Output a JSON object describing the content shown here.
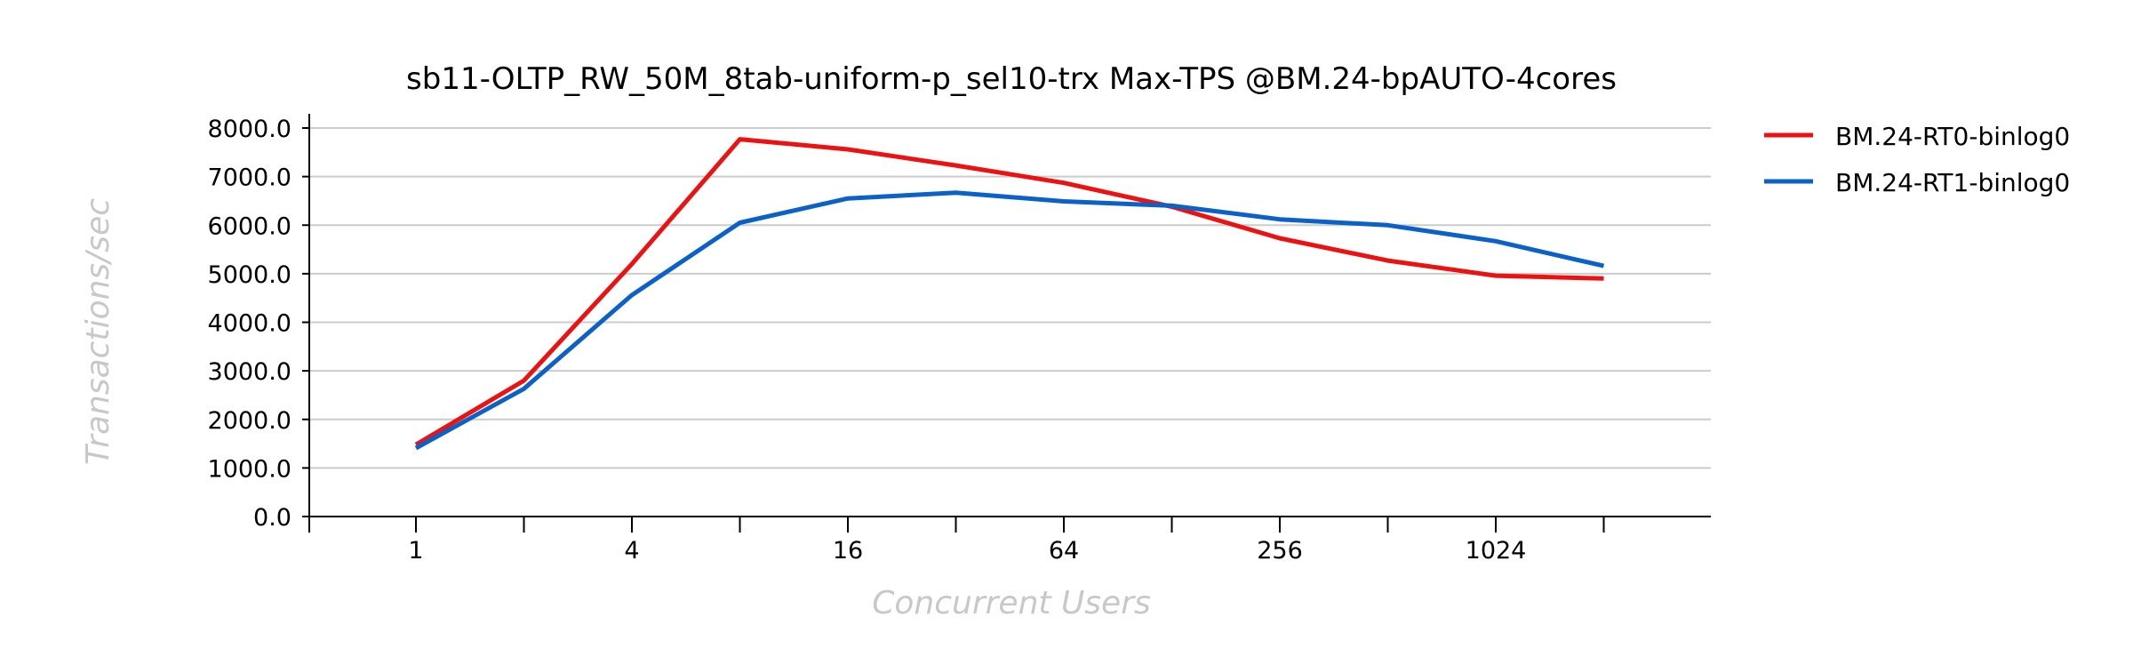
{
  "chart_data": {
    "type": "line",
    "title": "sb11-OLTP_RW_50M_8tab-uniform-p_sel10-trx Max-TPS @BM.24-bpAUTO-4cores",
    "xlabel": "Concurrent Users",
    "ylabel": "Transactions/sec",
    "x_scale": "log2",
    "x": [
      1,
      2,
      4,
      8,
      16,
      32,
      64,
      128,
      256,
      512,
      1024,
      2048
    ],
    "x_tick_labels": [
      "1",
      "4",
      "16",
      "64",
      "256",
      "1024"
    ],
    "y_tick_labels": [
      "0.0",
      "1000.0",
      "2000.0",
      "3000.0",
      "4000.0",
      "5000.0",
      "6000.0",
      "7000.0",
      "8000.0"
    ],
    "ylim": [
      0,
      8000
    ],
    "grid": "horizontal",
    "legend_position": "right",
    "series": [
      {
        "name": "BM.24-RT0-binlog0",
        "color": "#ee1111",
        "values": [
          1480,
          2800,
          5200,
          7770,
          7560,
          7230,
          6870,
          6380,
          5730,
          5270,
          4960,
          4900
        ]
      },
      {
        "name": "BM.24-RT1-binlog0",
        "color": "#0a62c8",
        "values": [
          1410,
          2630,
          4560,
          6050,
          6550,
          6670,
          6490,
          6400,
          6120,
          6000,
          5670,
          5160
        ]
      }
    ]
  }
}
